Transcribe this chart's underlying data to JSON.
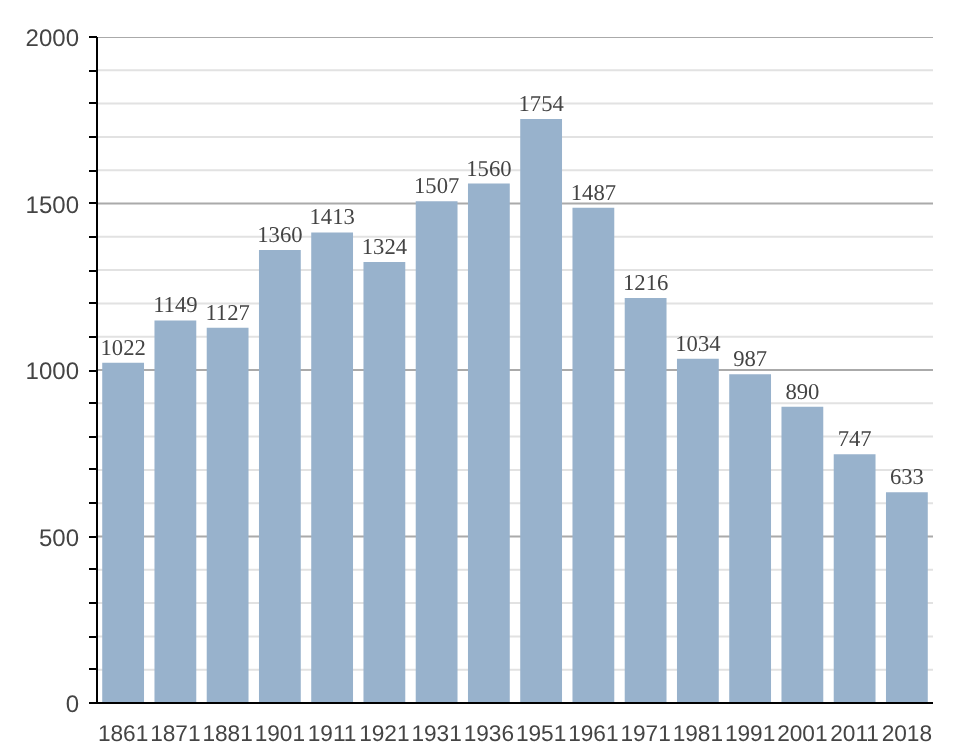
{
  "chart_data": {
    "type": "bar",
    "categories": [
      "1861",
      "1871",
      "1881",
      "1901",
      "1911",
      "1921",
      "1931",
      "1936",
      "1951",
      "1961",
      "1971",
      "1981",
      "1991",
      "2001",
      "2011",
      "2018"
    ],
    "values": [
      1022,
      1149,
      1127,
      1360,
      1413,
      1324,
      1507,
      1560,
      1754,
      1487,
      1216,
      1034,
      987,
      890,
      747,
      633
    ],
    "color": "#98b2cc",
    "ylim": [
      0,
      2000
    ],
    "yticks": [
      0,
      {
        "value": 100,
        "label": null
      },
      {
        "value": 200,
        "label": null
      },
      {
        "value": 300,
        "label": null
      },
      {
        "value": 400,
        "label": null
      },
      500,
      {
        "value": 600,
        "label": null
      },
      {
        "value": 700,
        "label": null
      },
      {
        "value": 800,
        "label": null
      },
      {
        "value": 900,
        "label": null
      },
      1000,
      {
        "value": 1100,
        "label": null
      },
      {
        "value": 1200,
        "label": null
      },
      {
        "value": 1300,
        "label": null
      },
      {
        "value": 1400,
        "label": null
      },
      1500,
      {
        "value": 1600,
        "label": null
      },
      {
        "value": 1700,
        "label": null
      },
      {
        "value": 1800,
        "label": null
      },
      {
        "value": 1900,
        "label": null
      },
      2000
    ],
    "grid": "y",
    "data_labels": true
  }
}
